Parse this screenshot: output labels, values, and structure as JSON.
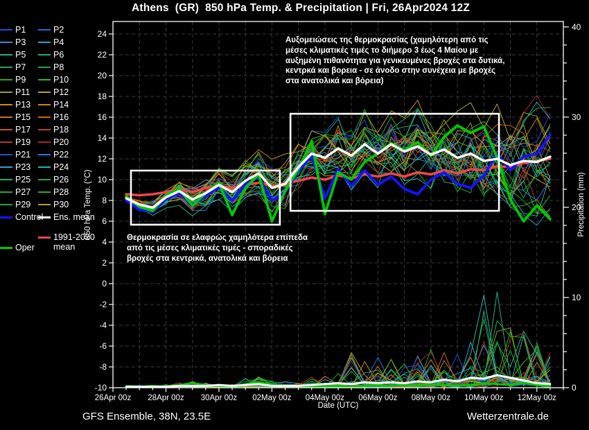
{
  "title": "Athens  (GR)  850 hPa Temp. & Precipitation | Fri, 26Apr2024 12Z",
  "footer": {
    "model_label": "GFS Ensemble, 38N, 23.5E",
    "site_label": "Wetterzentrale.de"
  },
  "colors": {
    "background": "#000000",
    "frame": "#ffffff",
    "grid": "#3c3c3c",
    "control": "#1414ff",
    "ens_mean": "#ffffff",
    "clim_mean": "#ee4747",
    "oper": "#00c800",
    "annotation_box": "#ffffff"
  },
  "legend": {
    "members": [
      {
        "label": "P1",
        "color": "#1f4fd8"
      },
      {
        "label": "P2",
        "color": "#2b62e0"
      },
      {
        "label": "P3",
        "color": "#2a93d5"
      },
      {
        "label": "P4",
        "color": "#2aa8c8"
      },
      {
        "label": "P5",
        "color": "#27ad9b"
      },
      {
        "label": "P6",
        "color": "#25ab7a"
      },
      {
        "label": "P7",
        "color": "#22a958"
      },
      {
        "label": "P8",
        "color": "#1fa93c"
      },
      {
        "label": "P9",
        "color": "#1dab27"
      },
      {
        "label": "P10",
        "color": "#2db825"
      },
      {
        "label": "P11",
        "color": "#9aa31f"
      },
      {
        "label": "P12",
        "color": "#b3a51e"
      },
      {
        "label": "P13",
        "color": "#c2961c"
      },
      {
        "label": "P14",
        "color": "#c8851b"
      },
      {
        "label": "P15",
        "color": "#cc761a"
      },
      {
        "label": "P16",
        "color": "#cc6619"
      },
      {
        "label": "P17",
        "color": "#c85619"
      },
      {
        "label": "P18",
        "color": "#c04419"
      },
      {
        "label": "P19",
        "color": "#b53527"
      },
      {
        "label": "P20",
        "color": "#a82525"
      },
      {
        "label": "P21",
        "color": "#1f4fd8"
      },
      {
        "label": "P22",
        "color": "#2e79dc"
      },
      {
        "label": "P23",
        "color": "#2aa4cc"
      },
      {
        "label": "P24",
        "color": "#28b2b2"
      },
      {
        "label": "P25",
        "color": "#25ab6e"
      },
      {
        "label": "P26",
        "color": "#22a94e"
      },
      {
        "label": "P27",
        "color": "#20aa38"
      },
      {
        "label": "P28",
        "color": "#26b02a"
      },
      {
        "label": "P29",
        "color": "#1dab27"
      },
      {
        "label": "P30",
        "color": "#b3a51e"
      }
    ],
    "control_label": "Control",
    "ens_mean_label": "Ens. mean",
    "clim_label_line1": "1991-2020",
    "clim_label_line2": "mean",
    "oper_label": "Oper"
  },
  "axes": {
    "x_title": "Date (UTC)",
    "y_left_title": "850 hPa Temp. (°C)",
    "y_right_title": "Precipitation (mm)",
    "x_tick_labels": [
      "26Apr 00z",
      "28Apr 00z",
      "30Apr 00z",
      "02May 00z",
      "04May 00z",
      "06May 00z",
      "08May 00z",
      "10May 00z",
      "12May 00z"
    ],
    "x_tick_days": [
      0,
      2,
      4,
      6,
      8,
      10,
      12,
      14,
      16
    ],
    "y_left_tick_values": [
      24,
      22,
      20,
      18,
      16,
      14,
      12,
      10,
      8,
      6,
      4,
      2,
      0,
      -2,
      -4,
      -6,
      -8,
      -10
    ],
    "y_right_tick_values": [
      0,
      10,
      20,
      30,
      40
    ],
    "y_left_range": [
      -10,
      25.2
    ],
    "y_right_range": [
      0,
      40.6
    ],
    "x_range_days": [
      0,
      17
    ]
  },
  "annotations": {
    "top_text": "Αυξομειώσεις της θερμοκρασίας (χαμηλότερη από τις\nμέσες κλιματικές τιμές το διήμερο 3 έως 4 Μαίου με\nαυξημένη πιθανότητα για γενικευμένες βροχές στα δυτικά,\nκεντρκά και βορεια - σε άνοδο στην συνέχεια με βροχές\nστα ανατολικά και βόρεια)",
    "bottom_text": "Θερμοκρασία σε ελαφρώς χαμηλότερα επίπεδα\nαπό τις μέσες κλιματικές τιμές - σποραδικές\nβροχές στα κεντρικά, ανατολικά και βόρεια"
  },
  "highlight_boxes": [
    {
      "x_days": [
        0.68,
        6.3
      ],
      "temp": [
        5.67,
        10.87
      ]
    },
    {
      "x_days": [
        6.7,
        14.57
      ],
      "temp": [
        7.0,
        16.33
      ]
    }
  ],
  "chart_data": {
    "type": "line",
    "title": "Athens (GR) 850 hPa Temp. & Precipitation, GFS Ensemble run Fri 26Apr2024 12Z",
    "xlabel": "Date (UTC)",
    "ylabel_left": "850 hPa Temp. (°C)",
    "ylabel_right": "Precipitation (mm)",
    "x_days_from_26apr_00z": [
      0.5,
      1,
      1.5,
      2,
      2.5,
      3,
      3.5,
      4,
      4.5,
      5,
      5.5,
      6,
      6.5,
      7,
      7.5,
      8,
      8.5,
      9,
      9.5,
      10,
      10.5,
      11,
      11.5,
      12,
      12.5,
      13,
      13.5,
      14,
      14.5,
      15,
      15.5,
      16,
      16.5
    ],
    "series": [
      {
        "name": "Ens. mean",
        "axis": "temp",
        "color": "#ffffff",
        "width": 3.4,
        "values": [
          8.2,
          7.6,
          7.3,
          8.3,
          8.9,
          8.1,
          8.7,
          9.5,
          8.8,
          9.9,
          10.6,
          9.2,
          9.6,
          11.2,
          12.5,
          12.1,
          13.0,
          12.3,
          13.4,
          12.5,
          13.4,
          12.7,
          13.2,
          12.4,
          12.9,
          12.1,
          12.5,
          11.8,
          12.0,
          11.4,
          11.8,
          11.7,
          12.2
        ]
      },
      {
        "name": "Control",
        "axis": "temp",
        "color": "#1414ff",
        "width": 3.8,
        "values": [
          8.0,
          7.1,
          6.9,
          8.1,
          8.7,
          7.6,
          8.4,
          9.3,
          8.0,
          9.6,
          10.2,
          8.0,
          8.8,
          10.8,
          12.3,
          8.2,
          11.0,
          9.4,
          10.9,
          9.5,
          10.3,
          9.1,
          8.6,
          10.0,
          10.7,
          9.6,
          9.2,
          10.4,
          12.5,
          10.9,
          12.2,
          12.5,
          14.3
        ]
      },
      {
        "name": "Oper",
        "axis": "temp",
        "color": "#00c800",
        "width": 3.8,
        "values": [
          8.4,
          7.4,
          7.0,
          8.5,
          9.1,
          7.5,
          8.7,
          9.7,
          6.6,
          9.2,
          10.5,
          6.0,
          8.9,
          11.0,
          13.7,
          6.7,
          10.7,
          10.0,
          11.7,
          12.5,
          13.5,
          12.8,
          13.6,
          12.3,
          14.1,
          15.2,
          14.5,
          15.1,
          12.1,
          8.1,
          6.0,
          7.5,
          6.2
        ]
      },
      {
        "name": "1991-2020 mean",
        "axis": "temp",
        "color": "#ee4747",
        "width": 3.6,
        "values": [
          8.6,
          8.5,
          8.6,
          8.8,
          9.1,
          8.8,
          9.2,
          9.4,
          9.2,
          9.5,
          9.7,
          9.4,
          9.6,
          9.9,
          10.2,
          10.0,
          10.4,
          10.1,
          10.5,
          10.3,
          10.6,
          10.3,
          10.7,
          10.5,
          10.9,
          10.6,
          11.0,
          10.9,
          11.3,
          11.2,
          11.6,
          11.8,
          12.0
        ]
      },
      {
        "name": "Ens. mean precipitation",
        "axis": "precip",
        "color": "#ffffff",
        "width": 3.0,
        "values": [
          0.1,
          0.1,
          0.1,
          0.1,
          0.2,
          0.2,
          0.2,
          0.3,
          0.2,
          0.3,
          0.4,
          0.2,
          0.2,
          0.2,
          0.3,
          0.4,
          0.5,
          0.4,
          0.6,
          0.5,
          0.6,
          0.5,
          0.7,
          0.6,
          0.9,
          0.7,
          1.1,
          1.0,
          1.4,
          1.1,
          0.8,
          0.5,
          0.4
        ]
      },
      {
        "name": "Oper precipitation",
        "axis": "precip",
        "color": "#00c800",
        "width": 3.0,
        "values": [
          0.1,
          0.1,
          0.2,
          0.1,
          0.3,
          0.5,
          0.3,
          0.2,
          0.1,
          0.4,
          0.6,
          0.3,
          0.2,
          0.1,
          0.2,
          0.1,
          0.2,
          0.1,
          0.2,
          0.3,
          0.2,
          0.3,
          0.2,
          0.4,
          0.3,
          0.2,
          0.3,
          0.5,
          0.4,
          0.3,
          0.5,
          0.3,
          0.2
        ]
      }
    ],
    "ensemble_members": {
      "count": 30,
      "seed": 20240426,
      "temp_spread_halfwidth": [
        0.3,
        0.5,
        0.7,
        0.9,
        1.1,
        1.3,
        1.5,
        1.6,
        1.8,
        2.0,
        2.1,
        2.2,
        2.3,
        2.5,
        2.6,
        2.8,
        3.0,
        3.2,
        3.4,
        3.5,
        3.6,
        3.7,
        3.8,
        3.9,
        4.0,
        4.2,
        4.4,
        4.6,
        4.8,
        5.0,
        5.2,
        5.4,
        5.6
      ],
      "precip_spike_max": [
        0.3,
        0.3,
        0.4,
        0.4,
        0.6,
        0.7,
        0.6,
        0.5,
        0.6,
        0.9,
        1.1,
        0.9,
        0.7,
        0.9,
        1.2,
        1.8,
        3.0,
        3.5,
        4.5,
        3.8,
        3.2,
        2.8,
        3.4,
        3.8,
        5.0,
        5.5,
        7.0,
        10.0,
        10.5,
        7.5,
        6.5,
        4.5,
        3.8
      ]
    }
  }
}
